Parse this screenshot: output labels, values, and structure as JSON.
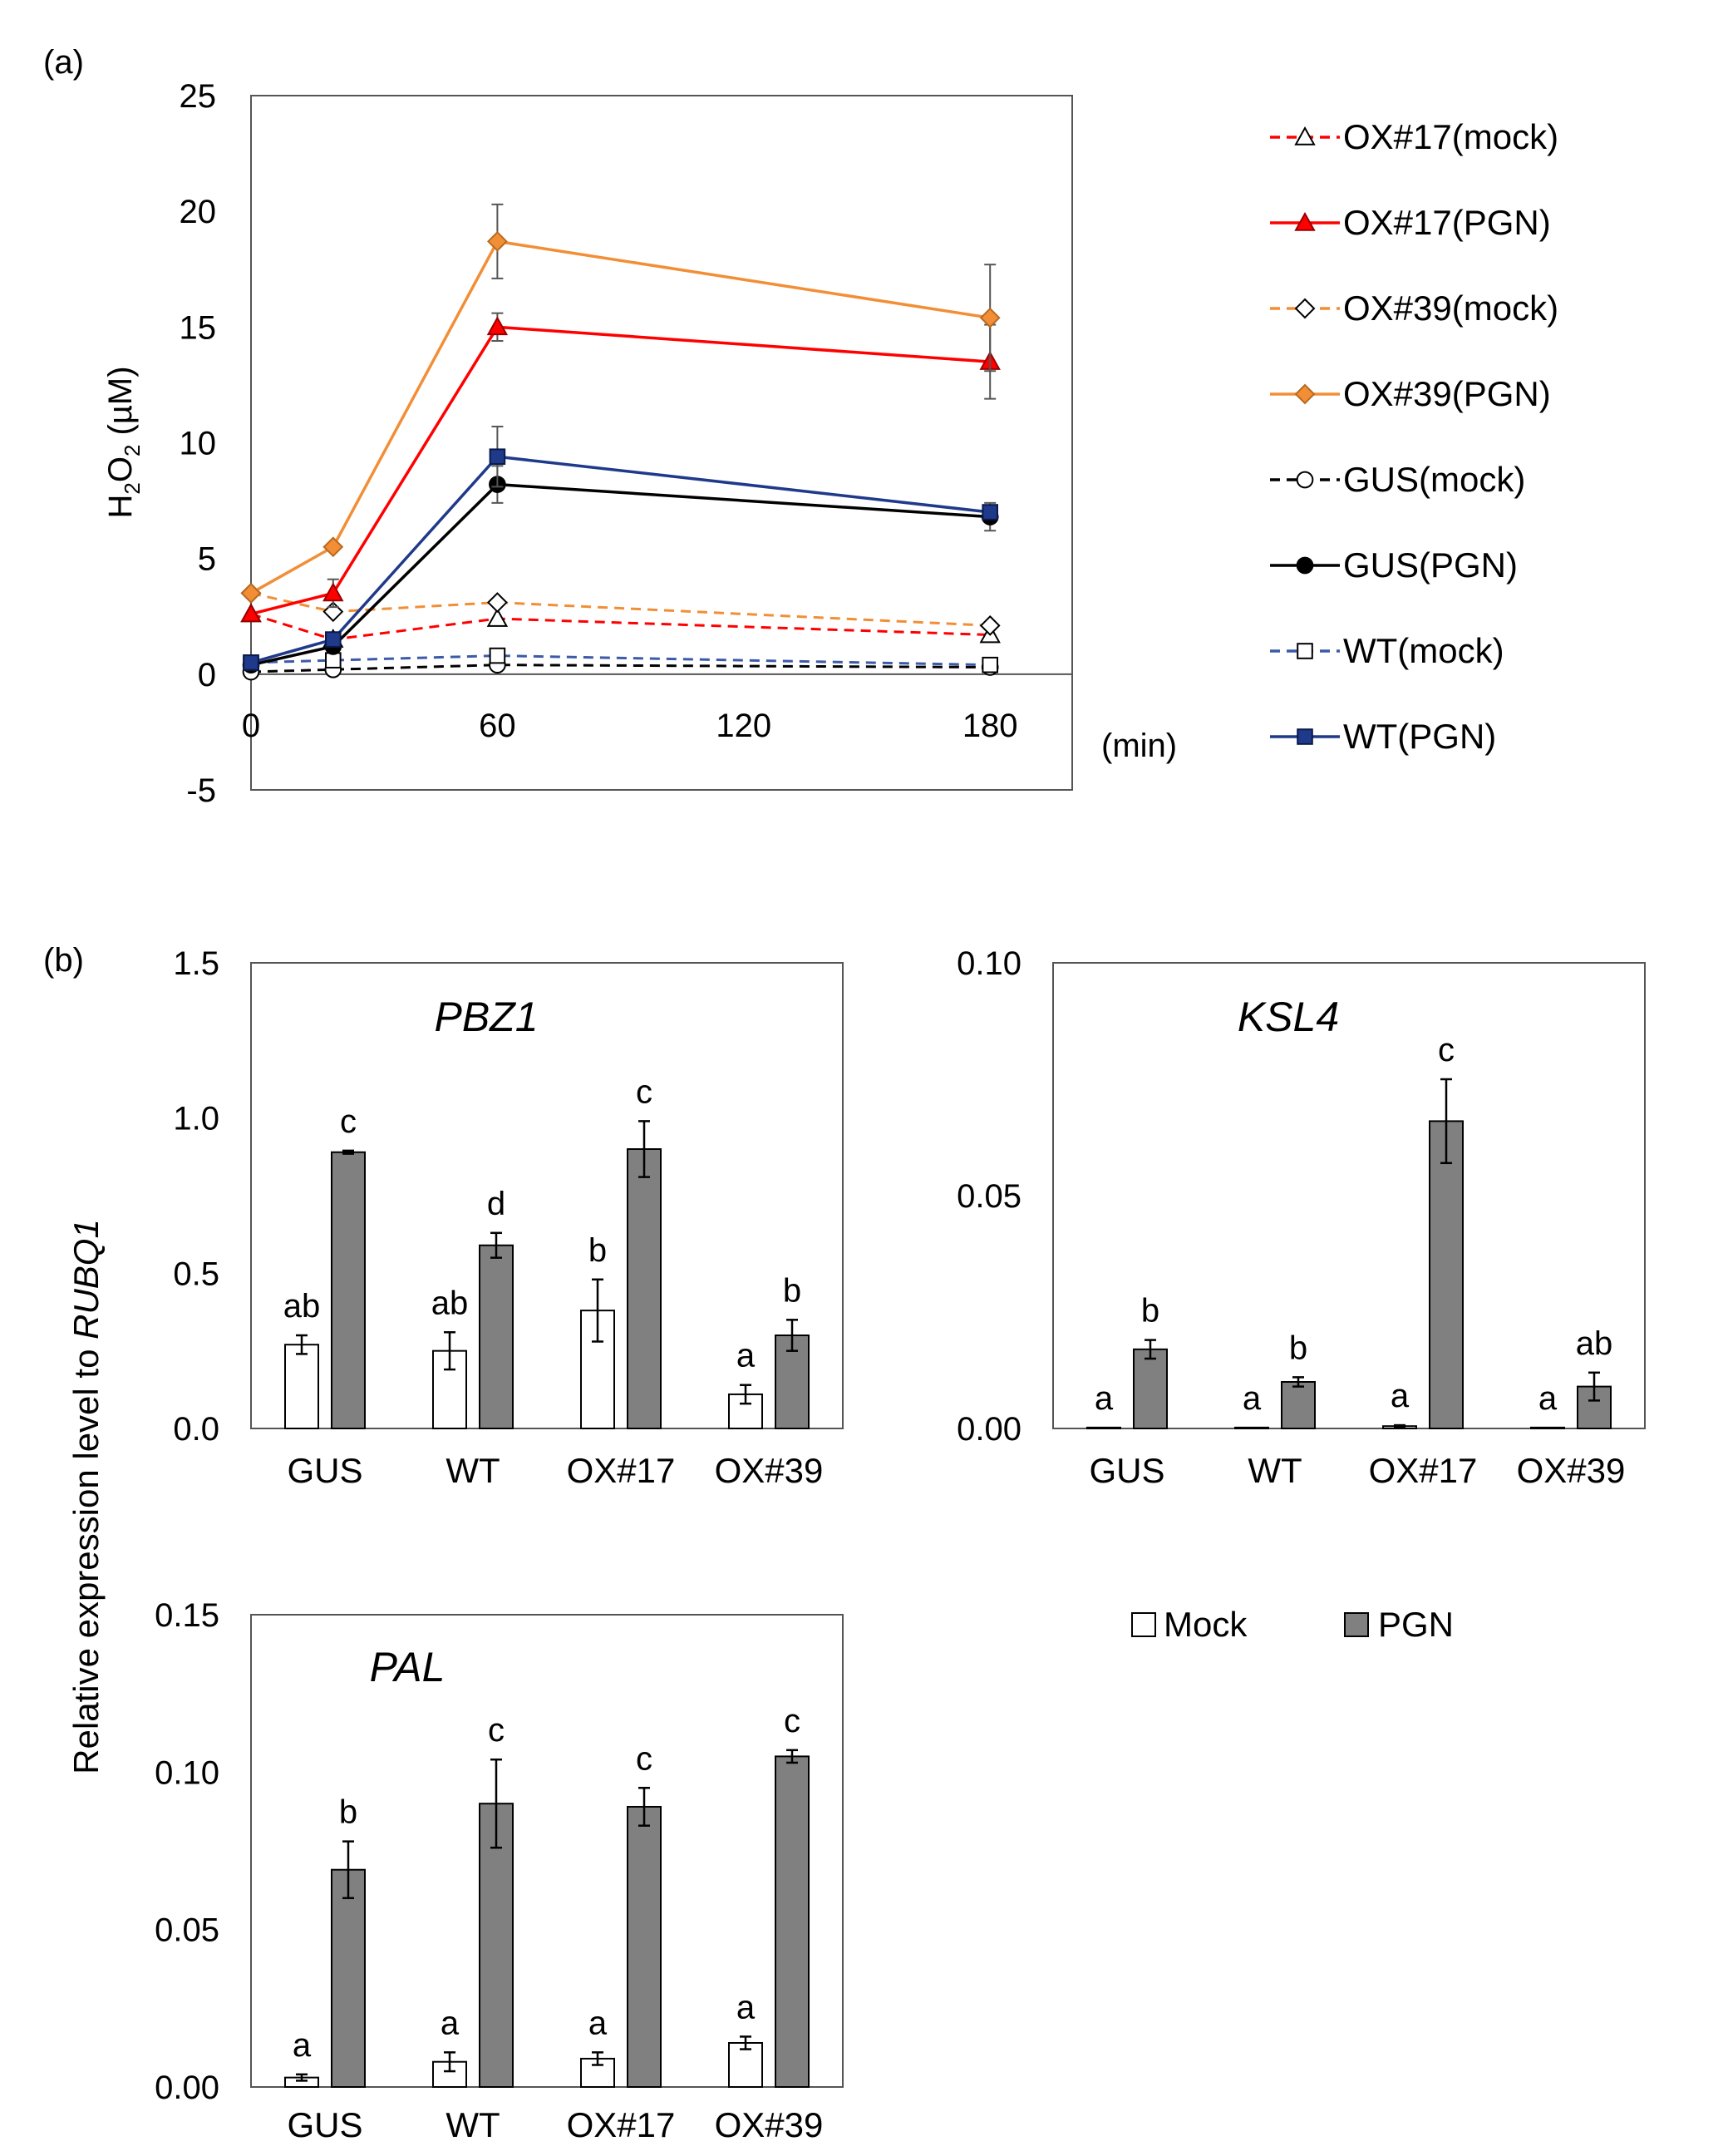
{
  "chart_data": [
    {
      "id": "a",
      "type": "line",
      "panel_label": "(a)",
      "ylabel_main": "H",
      "ylabel_sub1": "2",
      "ylabel_mid": "O",
      "ylabel_sub2": "2",
      "ylabel_tail": " (µM)",
      "xlabel": "(min)",
      "x_ticks": [
        "0",
        "60",
        "120",
        "180"
      ],
      "y_ticks": [
        "25",
        "20",
        "15",
        "10",
        "5",
        "0",
        "-5"
      ],
      "xlim": [
        0,
        200
      ],
      "ylim": [
        -5,
        25
      ],
      "x": [
        0,
        20,
        60,
        180
      ],
      "series": [
        {
          "name": "OX#17(mock)",
          "color": "#ff0000",
          "dash": true,
          "marker": "triangle",
          "filled": false,
          "values": [
            2.6,
            1.5,
            2.4,
            1.7
          ],
          "errors": [
            0,
            0,
            0,
            0
          ]
        },
        {
          "name": "OX#17(PGN)",
          "color": "#ff0000",
          "dash": false,
          "marker": "triangle",
          "filled": true,
          "values": [
            2.6,
            3.5,
            15.0,
            13.5
          ],
          "errors": [
            0,
            0.6,
            0.6,
            1.6
          ]
        },
        {
          "name": "OX#39(mock)",
          "color": "#f28e36",
          "dash": true,
          "marker": "diamond",
          "filled": false,
          "values": [
            3.5,
            2.7,
            3.1,
            2.1
          ],
          "errors": [
            0,
            0,
            0,
            0
          ]
        },
        {
          "name": "OX#39(PGN)",
          "color": "#f28e36",
          "dash": false,
          "marker": "diamond",
          "filled": true,
          "values": [
            3.5,
            5.5,
            18.7,
            15.4
          ],
          "errors": [
            0,
            0,
            1.6,
            2.3
          ]
        },
        {
          "name": "GUS(mock)",
          "color": "#000000",
          "dash": true,
          "marker": "circle",
          "filled": false,
          "values": [
            0.1,
            0.2,
            0.4,
            0.3
          ],
          "errors": [
            0,
            0,
            0,
            0
          ]
        },
        {
          "name": "GUS(PGN)",
          "color": "#000000",
          "dash": false,
          "marker": "circle",
          "filled": true,
          "values": [
            0.4,
            1.2,
            8.2,
            6.8
          ],
          "errors": [
            0,
            0,
            0.8,
            0.6
          ]
        },
        {
          "name": "WT(mock)",
          "color": "#3b5ba8",
          "dash": true,
          "marker": "square",
          "filled": false,
          "values": [
            0.5,
            0.6,
            0.8,
            0.4
          ],
          "errors": [
            0,
            0,
            0,
            0
          ]
        },
        {
          "name": "WT(PGN)",
          "color": "#1f3a8a",
          "dash": false,
          "marker": "square",
          "filled": true,
          "values": [
            0.5,
            1.5,
            9.4,
            7.0
          ],
          "errors": [
            0,
            0,
            1.3,
            0.3
          ]
        }
      ]
    },
    {
      "id": "pbz1",
      "type": "bar",
      "panel_label": "(b)",
      "title": "PBZ1",
      "categories": [
        "GUS",
        "WT",
        "OX#17",
        "OX#39"
      ],
      "y_ticks": [
        "1.5",
        "1.0",
        "0.5",
        "0.0"
      ],
      "ylim": [
        0,
        1.5
      ],
      "series": [
        {
          "name": "Mock",
          "values": [
            0.27,
            0.25,
            0.38,
            0.11
          ],
          "errors": [
            0.03,
            0.06,
            0.1,
            0.03
          ],
          "letters": [
            "ab",
            "ab",
            "b",
            "a"
          ]
        },
        {
          "name": "PGN",
          "values": [
            0.89,
            0.59,
            0.9,
            0.3
          ],
          "errors": [
            0.005,
            0.04,
            0.09,
            0.05
          ],
          "letters": [
            "c",
            "d",
            "c",
            "b"
          ]
        }
      ]
    },
    {
      "id": "ksl4",
      "type": "bar",
      "title": "KSL4",
      "categories": [
        "GUS",
        "WT",
        "OX#17",
        "OX#39"
      ],
      "y_ticks": [
        "0.10",
        "0.05",
        "0.00"
      ],
      "ylim": [
        0,
        0.1
      ],
      "series": [
        {
          "name": "Mock",
          "values": [
            0.0002,
            0.0002,
            0.0005,
            0.0002
          ],
          "errors": [
            0,
            0,
            0.0002,
            0
          ],
          "letters": [
            "a",
            "a",
            "a",
            "a"
          ]
        },
        {
          "name": "PGN",
          "values": [
            0.017,
            0.01,
            0.066,
            0.009
          ],
          "errors": [
            0.002,
            0.001,
            0.009,
            0.003
          ],
          "letters": [
            "b",
            "b",
            "c",
            "ab"
          ]
        }
      ]
    },
    {
      "id": "pal",
      "type": "bar",
      "title": "PAL",
      "categories": [
        "GUS",
        "WT",
        "OX#17",
        "OX#39"
      ],
      "y_ticks": [
        "0.15",
        "0.10",
        "0.05",
        "0.00"
      ],
      "ylim": [
        0,
        0.15
      ],
      "series": [
        {
          "name": "Mock",
          "values": [
            0.003,
            0.008,
            0.009,
            0.014
          ],
          "errors": [
            0.001,
            0.003,
            0.002,
            0.002
          ],
          "letters": [
            "a",
            "a",
            "a",
            "a"
          ]
        },
        {
          "name": "PGN",
          "values": [
            0.069,
            0.09,
            0.089,
            0.105
          ],
          "errors": [
            0.009,
            0.014,
            0.006,
            0.002
          ],
          "letters": [
            "b",
            "c",
            "c",
            "c"
          ]
        }
      ]
    }
  ],
  "shared_ylabel": {
    "main": "Relative expression level to ",
    "italic": "RUBQ1"
  },
  "bar_legend": {
    "mock_label": "Mock",
    "pgn_label": "PGN",
    "mock_color": "#ffffff",
    "pgn_color": "#808080"
  }
}
